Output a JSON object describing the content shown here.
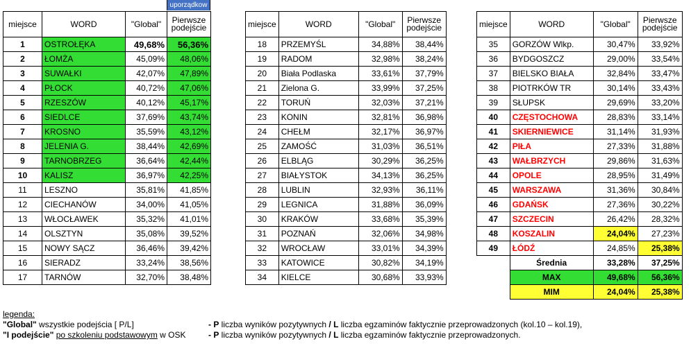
{
  "header": {
    "sort_chip": "uporządkow",
    "col_place": "miejsce",
    "col_word": "WORD",
    "col_global": "\"Global\"",
    "col_first_l1": "Pierwsze",
    "col_first_l2": "podejście"
  },
  "table1": [
    {
      "rank": "1",
      "name": "OSTROŁĘKA",
      "global": "49,68%",
      "first": "56,36%"
    },
    {
      "rank": "2",
      "name": "ŁOMŻA",
      "global": "45,09%",
      "first": "48,06%"
    },
    {
      "rank": "3",
      "name": "SUWAŁKI",
      "global": "42,07%",
      "first": "47,89%"
    },
    {
      "rank": "4",
      "name": "PŁOCK",
      "global": "40,72%",
      "first": "47,06%"
    },
    {
      "rank": "5",
      "name": "RZESZÓW",
      "global": "40,12%",
      "first": "45,17%"
    },
    {
      "rank": "6",
      "name": "SIEDLCE",
      "global": "37,69%",
      "first": "43,74%"
    },
    {
      "rank": "7",
      "name": "KROSNO",
      "global": "35,59%",
      "first": "43,12%"
    },
    {
      "rank": "8",
      "name": "JELENIA G.",
      "global": "38,44%",
      "first": "42,69%"
    },
    {
      "rank": "9",
      "name": "TARNOBRZEG",
      "global": "36,64%",
      "first": "42,44%"
    },
    {
      "rank": "10",
      "name": "KALISZ",
      "global": "36,97%",
      "first": "42,25%"
    },
    {
      "rank": "11",
      "name": "LESZNO",
      "global": "35,81%",
      "first": "41,85%"
    },
    {
      "rank": "12",
      "name": "CIECHANÓW",
      "global": "34,00%",
      "first": "41,05%"
    },
    {
      "rank": "13",
      "name": "WŁOCŁAWEK",
      "global": "35,32%",
      "first": "41,01%"
    },
    {
      "rank": "14",
      "name": "OLSZTYN",
      "global": "35,08%",
      "first": "39,52%"
    },
    {
      "rank": "15",
      "name": "NOWY SĄCZ",
      "global": "36,46%",
      "first": "39,42%"
    },
    {
      "rank": "16",
      "name": "SIERADZ",
      "global": "33,24%",
      "first": "38,56%"
    },
    {
      "rank": "17",
      "name": "TARNÓW",
      "global": "32,70%",
      "first": "38,48%"
    }
  ],
  "table2": [
    {
      "rank": "18",
      "name": "PRZEMYŚL",
      "global": "34,88%",
      "first": "38,44%"
    },
    {
      "rank": "19",
      "name": "RADOM",
      "global": "32,98%",
      "first": "38,24%"
    },
    {
      "rank": "20",
      "name": "Biała Podlaska",
      "global": "33,61%",
      "first": "37,79%"
    },
    {
      "rank": "21",
      "name": "Zielona G.",
      "global": "33,99%",
      "first": "37,25%"
    },
    {
      "rank": "22",
      "name": "TORUŃ",
      "global": "32,03%",
      "first": "37,21%"
    },
    {
      "rank": "23",
      "name": "KONIN",
      "global": "32,81%",
      "first": "36,98%"
    },
    {
      "rank": "24",
      "name": "CHEŁM",
      "global": "32,17%",
      "first": "36,97%"
    },
    {
      "rank": "25",
      "name": "ZAMOŚĆ",
      "global": "31,03%",
      "first": "36,51%"
    },
    {
      "rank": "26",
      "name": "ELBLĄG",
      "global": "30,29%",
      "first": "36,25%"
    },
    {
      "rank": "27",
      "name": "BIAŁYSTOK",
      "global": "34,13%",
      "first": "36,25%"
    },
    {
      "rank": "28",
      "name": "LUBLIN",
      "global": "32,93%",
      "first": "36,11%"
    },
    {
      "rank": "29",
      "name": "LEGNICA",
      "global": "31,88%",
      "first": "36,09%"
    },
    {
      "rank": "30",
      "name": "KRAKÓW",
      "global": "33,68%",
      "first": "35,39%"
    },
    {
      "rank": "31",
      "name": "POZNAŃ",
      "global": "32,06%",
      "first": "34,98%"
    },
    {
      "rank": "32",
      "name": "WROCŁAW",
      "global": "33,01%",
      "first": "34,39%"
    },
    {
      "rank": "33",
      "name": "KATOWICE",
      "global": "30,82%",
      "first": "34,19%"
    },
    {
      "rank": "34",
      "name": "KIELCE",
      "global": "30,68%",
      "first": "33,93%"
    }
  ],
  "table3": [
    {
      "rank": "35",
      "name": "GORZÓW Wlkp.",
      "global": "30,47%",
      "first": "33,92%"
    },
    {
      "rank": "36",
      "name": "BYDGOSZCZ",
      "global": "29,00%",
      "first": "33,54%"
    },
    {
      "rank": "37",
      "name": "BIELSKO BIAŁA",
      "global": "32,84%",
      "first": "33,47%"
    },
    {
      "rank": "38",
      "name": "PIOTRKÓW TR",
      "global": "30,14%",
      "first": "33,43%"
    },
    {
      "rank": "39",
      "name": "SŁUPSK",
      "global": "29,69%",
      "first": "33,20%"
    },
    {
      "rank": "40",
      "name": "CZĘSTOCHOWA",
      "global": "28,83%",
      "first": "33,14%"
    },
    {
      "rank": "41",
      "name": "SKIERNIEWICE",
      "global": "31,14%",
      "first": "31,93%"
    },
    {
      "rank": "42",
      "name": "PIŁA",
      "global": "27,33%",
      "first": "31,88%"
    },
    {
      "rank": "43",
      "name": "WAŁBRZYCH",
      "global": "29,86%",
      "first": "31,63%"
    },
    {
      "rank": "44",
      "name": "OPOLE",
      "global": "28,95%",
      "first": "31,49%"
    },
    {
      "rank": "45",
      "name": "WARSZAWA",
      "global": "31,36%",
      "first": "30,84%"
    },
    {
      "rank": "46",
      "name": "GDAŃSK",
      "global": "27,36%",
      "first": "30,22%"
    },
    {
      "rank": "47",
      "name": "SZCZECIN",
      "global": "26,42%",
      "first": "28,32%"
    },
    {
      "rank": "48",
      "name": "KOSZALIN",
      "global": "24,04%",
      "first": "27,23%"
    },
    {
      "rank": "49",
      "name": "ŁÓDŹ",
      "global": "24,85%",
      "first": "25,38%"
    }
  ],
  "summary": {
    "avg_label": "Średnia",
    "avg_global": "33,28%",
    "avg_first": "37,25%",
    "max_label": "MAX",
    "max_global": "49,68%",
    "max_first": "56,36%",
    "min_label": "MIM",
    "min_global": "24,04%",
    "min_first": "25,38%"
  },
  "legend": {
    "title": "legenda:",
    "l1_key": "\"Global\"",
    "l1_desc": "  wszystkie podejścia [ P/L]",
    "l1_right_p": "- P",
    "l1_right_mid": " liczba wyników pozytywnych ",
    "l1_right_l": "/ L",
    "l1_right_tail": " liczba egzaminów  faktycznie przeprowadzonych (kol.10 – kol.19),",
    "l2_key": "\"I podejście\"",
    "l2_desc_u": "po szkoleniu podstawowym",
    "l2_desc_tail": " w OSK",
    "l2_right_p": "- P",
    "l2_right_mid": " liczba wyników pozytywnych ",
    "l2_right_l": "/ L",
    "l2_right_tail": " liczba egzaminów  faktycznie przeprowadzonych."
  },
  "colors": {
    "green": "#33dd33",
    "yellow": "#ffff33",
    "red": "#ff0000",
    "chip": "#4472c4"
  }
}
